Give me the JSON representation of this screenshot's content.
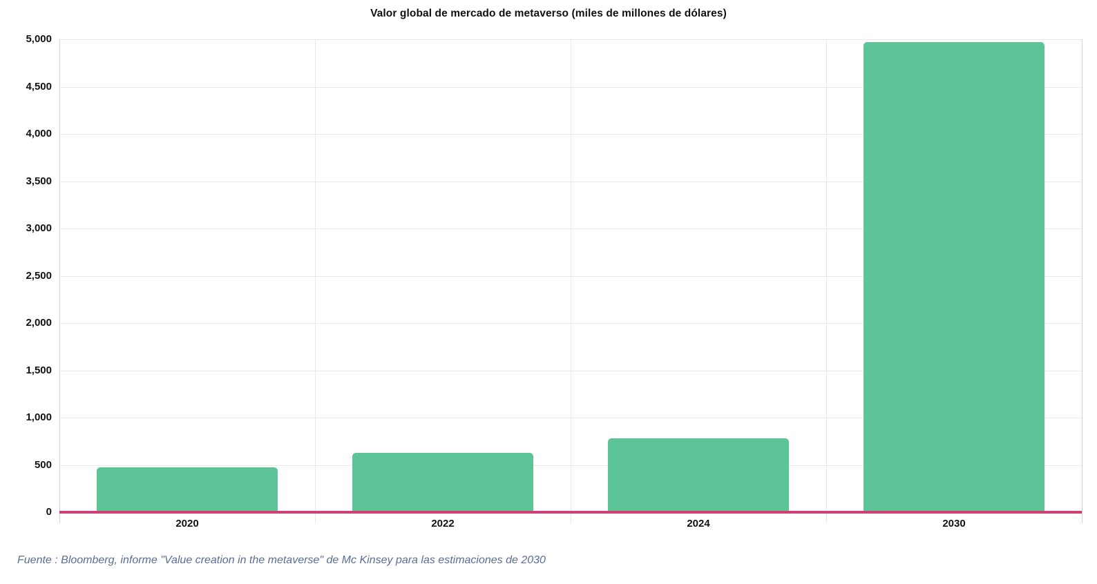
{
  "chart_data": {
    "type": "bar",
    "title": "Valor global de mercado de metaverso (miles de millones de dólares)",
    "categories": [
      "2020",
      "2022",
      "2024",
      "2030"
    ],
    "values": [
      478,
      630,
      783,
      4970
    ],
    "xlabel": "",
    "ylabel": "",
    "ylim": [
      0,
      5000
    ],
    "ytick_step": 500,
    "ytick_labels": [
      "0",
      "500",
      "1,000",
      "1,500",
      "2,000",
      "2,500",
      "3,000",
      "3,500",
      "4,000",
      "4,500",
      "5,000"
    ],
    "grid": "horizontal gridlines at each 500 step, vertical lines at category boundaries",
    "legend": "none",
    "source": "Fuente : Bloomberg, informe \"Value creation in the metaverse\" de Mc Kinsey para las estimaciones de 2030",
    "colors": {
      "bar": "#5DC497",
      "baseline": "#CF4077",
      "gridline": "#e9e9e9",
      "plot_border": "#d2d2d2",
      "title_text": "#111111",
      "tick_text": "#111111",
      "source_text": "#5A6E96",
      "background": "#ffffff"
    }
  }
}
